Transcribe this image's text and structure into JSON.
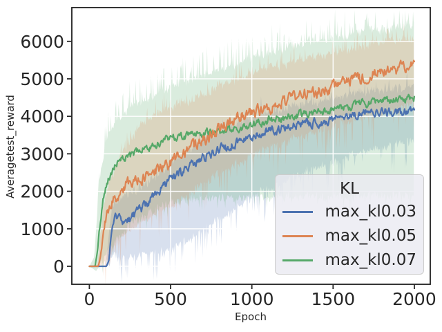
{
  "style": {
    "figure_bg": "#ffffff",
    "axes_bg": "#ffffff",
    "spine_color": "#1f1f1f",
    "tick_color": "#262626",
    "grid_color": "#ffffff",
    "text_color": "#262626",
    "legend_bg": "#eaeaf2",
    "legend_border": "#cccccc",
    "band_alpha": 0.22
  },
  "axis": {
    "xlabel": "Epoch",
    "ylabel": "Averagetest_reward",
    "xticks": [
      0,
      500,
      1000,
      1500,
      2000
    ],
    "yticks": [
      0,
      1000,
      2000,
      3000,
      4000,
      5000,
      6000
    ],
    "xlim": [
      -108,
      2098
    ],
    "ylim": [
      -480,
      6900
    ]
  },
  "chart_data": {
    "type": "line",
    "title": "",
    "xlabel": "Epoch",
    "ylabel": "Averagetest_reward",
    "legend_title": "KL",
    "legend_position": "lower right inside",
    "grid": true,
    "grid_color": "#ffffff",
    "xlim": [
      -108,
      2098
    ],
    "ylim": [
      -480,
      6900
    ],
    "sample_step": 4,
    "draw_order": [
      0,
      2,
      1
    ],
    "series": [
      {
        "name": "max_kl0.03",
        "color": "#4C72B0",
        "seed": 7,
        "mean_noise": 120,
        "lo_spike": 800,
        "lo_spike_p": 0.22,
        "hi_spike": 300,
        "hi_spike_p": 0.15,
        "mean": [
          [
            0,
            0
          ],
          [
            105,
            0
          ],
          [
            120,
            150
          ],
          [
            135,
            800
          ],
          [
            150,
            1250
          ],
          [
            165,
            1380
          ],
          [
            185,
            1250
          ],
          [
            200,
            1100
          ],
          [
            220,
            1200
          ],
          [
            250,
            1230
          ],
          [
            280,
            1400
          ],
          [
            300,
            1480
          ],
          [
            350,
            1620
          ],
          [
            400,
            1900
          ],
          [
            450,
            2100
          ],
          [
            500,
            2350
          ],
          [
            550,
            2470
          ],
          [
            600,
            2600
          ],
          [
            650,
            2750
          ],
          [
            700,
            2900
          ],
          [
            750,
            3000
          ],
          [
            800,
            3100
          ],
          [
            850,
            3200
          ],
          [
            900,
            3300
          ],
          [
            950,
            3400
          ],
          [
            1000,
            3500
          ],
          [
            1100,
            3600
          ],
          [
            1200,
            3700
          ],
          [
            1300,
            3790
          ],
          [
            1400,
            3850
          ],
          [
            1500,
            3900
          ],
          [
            1600,
            4000
          ],
          [
            1700,
            4100
          ],
          [
            1800,
            4150
          ],
          [
            1900,
            4100
          ],
          [
            2000,
            4220
          ]
        ],
        "band_lo": [
          [
            0,
            0
          ],
          [
            115,
            0
          ],
          [
            150,
            350
          ],
          [
            200,
            250
          ],
          [
            300,
            280
          ],
          [
            400,
            330
          ],
          [
            500,
            480
          ],
          [
            600,
            650
          ],
          [
            700,
            950
          ],
          [
            800,
            1250
          ],
          [
            900,
            1550
          ],
          [
            1000,
            1850
          ],
          [
            1200,
            2250
          ],
          [
            1400,
            2650
          ],
          [
            1600,
            2950
          ],
          [
            1800,
            3150
          ],
          [
            2000,
            3400
          ]
        ],
        "band_hi": [
          [
            0,
            0
          ],
          [
            100,
            0
          ],
          [
            130,
            1300
          ],
          [
            150,
            1650
          ],
          [
            200,
            1850
          ],
          [
            300,
            2050
          ],
          [
            400,
            2350
          ],
          [
            500,
            2750
          ],
          [
            600,
            3050
          ],
          [
            700,
            3350
          ],
          [
            800,
            3600
          ],
          [
            900,
            3800
          ],
          [
            1000,
            4000
          ],
          [
            1200,
            4200
          ],
          [
            1400,
            4400
          ],
          [
            1600,
            4600
          ],
          [
            1800,
            4700
          ],
          [
            2000,
            4800
          ]
        ]
      },
      {
        "name": "max_kl0.05",
        "color": "#DD8452",
        "seed": 13,
        "mean_noise": 150,
        "lo_spike": 900,
        "lo_spike_p": 0.16,
        "hi_spike": 420,
        "hi_spike_p": 0.18,
        "mean": [
          [
            0,
            0
          ],
          [
            55,
            0
          ],
          [
            70,
            300
          ],
          [
            85,
            800
          ],
          [
            100,
            1200
          ],
          [
            120,
            1500
          ],
          [
            150,
            1750
          ],
          [
            175,
            1900
          ],
          [
            200,
            2050
          ],
          [
            250,
            2250
          ],
          [
            300,
            2330
          ],
          [
            350,
            2400
          ],
          [
            400,
            2500
          ],
          [
            450,
            2620
          ],
          [
            500,
            2750
          ],
          [
            550,
            2900
          ],
          [
            600,
            3050
          ],
          [
            650,
            3200
          ],
          [
            700,
            3350
          ],
          [
            750,
            3500
          ],
          [
            800,
            3700
          ],
          [
            850,
            3820
          ],
          [
            900,
            3950
          ],
          [
            1000,
            4100
          ],
          [
            1100,
            4220
          ],
          [
            1200,
            4400
          ],
          [
            1300,
            4550
          ],
          [
            1400,
            4650
          ],
          [
            1500,
            4800
          ],
          [
            1600,
            4950
          ],
          [
            1700,
            5050
          ],
          [
            1800,
            5200
          ],
          [
            1900,
            5250
          ],
          [
            2000,
            5450
          ]
        ],
        "band_lo": [
          [
            0,
            0
          ],
          [
            60,
            0
          ],
          [
            100,
            150
          ],
          [
            150,
            500
          ],
          [
            200,
            800
          ],
          [
            300,
            1150
          ],
          [
            400,
            1400
          ],
          [
            500,
            1600
          ],
          [
            600,
            1900
          ],
          [
            700,
            2200
          ],
          [
            800,
            2500
          ],
          [
            900,
            2750
          ],
          [
            1000,
            3000
          ],
          [
            1200,
            3300
          ],
          [
            1400,
            3600
          ],
          [
            1600,
            3900
          ],
          [
            1800,
            4100
          ],
          [
            2000,
            4400
          ]
        ],
        "band_hi": [
          [
            0,
            0
          ],
          [
            50,
            50
          ],
          [
            85,
            1500
          ],
          [
            125,
            2300
          ],
          [
            200,
            3000
          ],
          [
            300,
            3700
          ],
          [
            400,
            4050
          ],
          [
            500,
            4250
          ],
          [
            600,
            4400
          ],
          [
            700,
            4600
          ],
          [
            800,
            4800
          ],
          [
            900,
            5000
          ],
          [
            1000,
            5150
          ],
          [
            1200,
            5400
          ],
          [
            1400,
            5600
          ],
          [
            1600,
            5800
          ],
          [
            1800,
            6000
          ],
          [
            2000,
            6100
          ]
        ]
      },
      {
        "name": "max_kl0.07",
        "color": "#55A868",
        "seed": 21,
        "mean_noise": 100,
        "lo_spike": 350,
        "lo_spike_p": 0.12,
        "hi_spike": 650,
        "hi_spike_p": 0.28,
        "mean": [
          [
            0,
            0
          ],
          [
            35,
            0
          ],
          [
            50,
            400
          ],
          [
            65,
            1100
          ],
          [
            80,
            1700
          ],
          [
            100,
            2100
          ],
          [
            125,
            2400
          ],
          [
            150,
            2600
          ],
          [
            175,
            2780
          ],
          [
            200,
            2900
          ],
          [
            250,
            2950
          ],
          [
            300,
            3100
          ],
          [
            350,
            3150
          ],
          [
            400,
            3220
          ],
          [
            450,
            3320
          ],
          [
            500,
            3400
          ],
          [
            600,
            3470
          ],
          [
            700,
            3550
          ],
          [
            800,
            3600
          ],
          [
            900,
            3680
          ],
          [
            1000,
            3780
          ],
          [
            1100,
            3900
          ],
          [
            1200,
            3950
          ],
          [
            1300,
            4050
          ],
          [
            1400,
            4120
          ],
          [
            1500,
            4180
          ],
          [
            1600,
            4250
          ],
          [
            1700,
            4350
          ],
          [
            1800,
            4400
          ],
          [
            1900,
            4430
          ],
          [
            2000,
            4500
          ]
        ],
        "band_lo": [
          [
            0,
            0
          ],
          [
            40,
            -120
          ],
          [
            80,
            150
          ],
          [
            150,
            650
          ],
          [
            250,
            1150
          ],
          [
            400,
            1500
          ],
          [
            500,
            1700
          ],
          [
            700,
            1800
          ],
          [
            1000,
            1850
          ],
          [
            1500,
            1850
          ],
          [
            2000,
            1900
          ]
        ],
        "band_hi": [
          [
            0,
            0
          ],
          [
            30,
            250
          ],
          [
            60,
            2200
          ],
          [
            100,
            3300
          ],
          [
            150,
            3800
          ],
          [
            250,
            4300
          ],
          [
            400,
            4550
          ],
          [
            500,
            4800
          ],
          [
            700,
            5100
          ],
          [
            900,
            5400
          ],
          [
            1100,
            5700
          ],
          [
            1300,
            5900
          ],
          [
            1500,
            6100
          ],
          [
            1700,
            6250
          ],
          [
            2000,
            6450
          ]
        ]
      }
    ]
  },
  "legend": {
    "title": "KL"
  }
}
